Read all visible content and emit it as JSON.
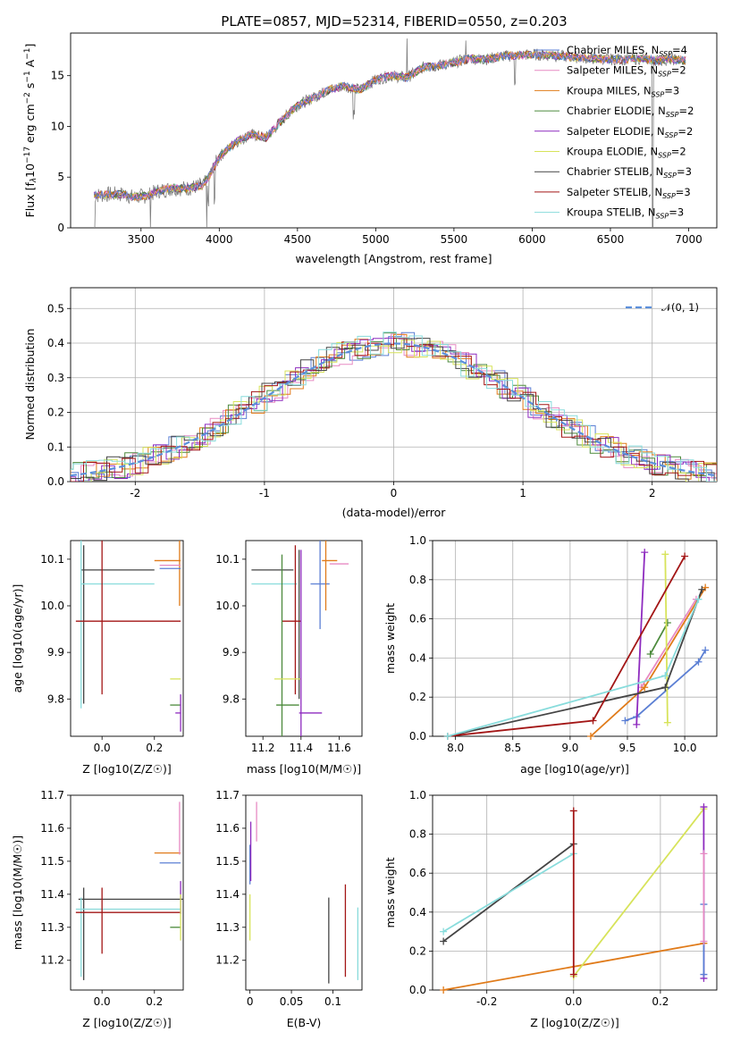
{
  "title": "PLATE=0857, MJD=52314, FIBERID=0550, z=0.203",
  "colors": {
    "chabrier_miles": "#5b7fd4",
    "salpeter_miles": "#e78ac3",
    "kroupa_miles": "#e07b1a",
    "chabrier_elodie": "#4c8a3c",
    "salpeter_elodie": "#8e2bbf",
    "kroupa_elodie": "#d7e35a",
    "chabrier_stelib": "#444444",
    "salpeter_stelib": "#a31616",
    "kroupa_stelib": "#88dcdc",
    "data": "#7f7f7f"
  },
  "chart_data": [
    {
      "id": "spectrum",
      "type": "line",
      "xlabel": "wavelength [Angstrom, rest frame]",
      "ylabel": "Flux [f_λ 10^-17 erg cm^-2 s^-1 A^-1]",
      "xlim": [
        3050,
        7180
      ],
      "ylim": [
        0,
        19.2
      ],
      "xticks": [
        3500,
        4000,
        4500,
        5000,
        5500,
        6000,
        6500,
        7000
      ],
      "yticks": [
        0,
        5,
        10,
        15
      ],
      "legend_position": "top-right",
      "legend": [
        "Chabrier MILES, N_SSP=4",
        "Salpeter MILES, N_SSP=2",
        "Kroupa MILES, N_SSP=3",
        "Chabrier ELODIE, N_SSP=2",
        "Salpeter ELODIE, N_SSP=2",
        "Kroupa ELODIE, N_SSP=2",
        "Chabrier STELIB, N_SSP=3",
        "Salpeter STELIB, N_SSP=3",
        "Kroupa STELIB, N_SSP=3"
      ],
      "continuum": [
        [
          3200,
          3.2
        ],
        [
          3300,
          3.3
        ],
        [
          3400,
          3.3
        ],
        [
          3450,
          3.0
        ],
        [
          3500,
          3.1
        ],
        [
          3550,
          3.2
        ],
        [
          3600,
          3.6
        ],
        [
          3700,
          3.9
        ],
        [
          3800,
          3.9
        ],
        [
          3900,
          4.2
        ],
        [
          3950,
          5.5
        ],
        [
          4000,
          7.0
        ],
        [
          4100,
          8.4
        ],
        [
          4200,
          9.2
        ],
        [
          4300,
          8.9
        ],
        [
          4400,
          10.6
        ],
        [
          4500,
          12.1
        ],
        [
          4600,
          12.8
        ],
        [
          4700,
          13.6
        ],
        [
          4800,
          14.0
        ],
        [
          4900,
          13.6
        ],
        [
          5000,
          14.6
        ],
        [
          5100,
          15.0
        ],
        [
          5200,
          14.8
        ],
        [
          5300,
          15.8
        ],
        [
          5400,
          16.0
        ],
        [
          5500,
          16.3
        ],
        [
          5600,
          16.7
        ],
        [
          5700,
          16.6
        ],
        [
          5800,
          16.9
        ],
        [
          5900,
          17.0
        ],
        [
          6000,
          17.1
        ],
        [
          6100,
          17.0
        ],
        [
          6200,
          16.9
        ],
        [
          6300,
          16.8
        ],
        [
          6400,
          16.7
        ],
        [
          6500,
          16.6
        ],
        [
          6600,
          16.6
        ],
        [
          6700,
          16.7
        ],
        [
          6800,
          16.5
        ],
        [
          6900,
          16.6
        ],
        [
          6980,
          16.5
        ]
      ]
    },
    {
      "id": "residuals",
      "type": "line",
      "xlabel": "(data-model)/error",
      "ylabel": "Normed distribution",
      "xlim": [
        -2.5,
        2.5
      ],
      "ylim": [
        0,
        0.56
      ],
      "xticks": [
        -2,
        -1,
        0,
        1,
        2
      ],
      "yticks": [
        0.0,
        0.1,
        0.2,
        0.3,
        0.4,
        0.5
      ],
      "legend_position": "top-right",
      "legend": [
        "𝒩(0, 1)"
      ],
      "series": [
        {
          "name": "𝒩(0, 1)",
          "mean": 0,
          "sigma": 1
        }
      ]
    },
    {
      "id": "age-vs-z",
      "type": "scatter",
      "xlabel": "Z [log10(Z/Z☉)]",
      "ylabel": "age [log10(age/yr)]",
      "xlim": [
        -0.12,
        0.31
      ],
      "ylim": [
        9.72,
        10.14
      ],
      "xticks": [
        0.0,
        0.2
      ],
      "yticks": [
        9.8,
        9.9,
        10.0,
        10.1
      ],
      "errorbars": [
        {
          "m": "chabrier_stelib",
          "x": 0.06,
          "xerr": 0.14,
          "y": 10.077,
          "yerr": 0.0
        },
        {
          "m": "chabrier_stelib",
          "x": -0.07,
          "xerr": 0.0,
          "y": 9.96,
          "yerr": 0.17
        },
        {
          "m": "kroupa_stelib",
          "x": 0.06,
          "xerr": 0.14,
          "y": 10.047,
          "yerr": 0.0
        },
        {
          "m": "kroupa_stelib",
          "x": -0.08,
          "xerr": 0.0,
          "y": 9.96,
          "yerr": 0.18
        },
        {
          "m": "salpeter_stelib",
          "x": 0.1,
          "xerr": 0.2,
          "y": 9.967,
          "yerr": 0.0
        },
        {
          "m": "salpeter_stelib",
          "x": 0.0,
          "xerr": 0.0,
          "y": 9.975,
          "yerr": 0.165
        },
        {
          "m": "kroupa_miles",
          "x": 0.25,
          "xerr": 0.05,
          "y": 10.097,
          "yerr": 0.0
        },
        {
          "m": "kroupa_miles",
          "x": 0.296,
          "xerr": 0.0,
          "y": 10.07,
          "yerr": 0.07
        },
        {
          "m": "chabrier_miles",
          "x": 0.26,
          "xerr": 0.04,
          "y": 10.08,
          "yerr": 0.0
        },
        {
          "m": "salpeter_miles",
          "x": 0.26,
          "xerr": 0.04,
          "y": 10.087,
          "yerr": 0.0
        },
        {
          "m": "kroupa_elodie",
          "x": 0.28,
          "xerr": 0.02,
          "y": 9.843,
          "yerr": 0.0
        },
        {
          "m": "chabrier_elodie",
          "x": 0.28,
          "xerr": 0.02,
          "y": 9.787,
          "yerr": 0.0
        },
        {
          "m": "salpeter_elodie",
          "x": 0.3,
          "xerr": 0.0,
          "y": 9.77,
          "yerr": 0.04
        },
        {
          "m": "salpeter_elodie",
          "x": 0.29,
          "xerr": 0.01,
          "y": 9.77,
          "yerr": 0.0
        }
      ]
    },
    {
      "id": "age-vs-mass",
      "type": "scatter",
      "xlabel": "mass [log10(M/M☉)]",
      "ylabel": "",
      "xlim": [
        11.11,
        11.72
      ],
      "ylim": [
        9.72,
        10.14
      ],
      "xticks": [
        11.2,
        11.4,
        11.6
      ],
      "yticks": [
        9.8,
        9.9,
        10.0,
        10.1
      ],
      "errorbars": [
        {
          "m": "chabrier_stelib",
          "x": 11.25,
          "xerr": 0.11,
          "y": 10.077,
          "yerr": 0.0
        },
        {
          "m": "chabrier_stelib",
          "x": 11.39,
          "xerr": 0.0,
          "y": 9.96,
          "yerr": 0.16
        },
        {
          "m": "kroupa_stelib",
          "x": 11.26,
          "xerr": 0.12,
          "y": 10.047,
          "yerr": 0.0
        },
        {
          "m": "salpeter_stelib",
          "x": 11.35,
          "xerr": 0.05,
          "y": 9.967,
          "yerr": 0.0
        },
        {
          "m": "salpeter_stelib",
          "x": 11.37,
          "xerr": 0.0,
          "y": 9.97,
          "yerr": 0.16
        },
        {
          "m": "chabrier_elodie",
          "x": 11.33,
          "xerr": 0.06,
          "y": 9.787,
          "yerr": 0.0
        },
        {
          "m": "chabrier_elodie",
          "x": 11.3,
          "xerr": 0.0,
          "y": 9.9,
          "yerr": 0.21
        },
        {
          "m": "kroupa_elodie",
          "x": 11.33,
          "xerr": 0.07,
          "y": 9.843,
          "yerr": 0.0
        },
        {
          "m": "salpeter_elodie",
          "x": 11.45,
          "xerr": 0.06,
          "y": 9.77,
          "yerr": 0.0
        },
        {
          "m": "salpeter_elodie",
          "x": 11.4,
          "xerr": 0.0,
          "y": 9.88,
          "yerr": 0.24
        },
        {
          "m": "chabrier_miles",
          "x": 11.5,
          "xerr": 0.05,
          "y": 10.047,
          "yerr": 0.0
        },
        {
          "m": "chabrier_miles",
          "x": 11.5,
          "xerr": 0.0,
          "y": 10.05,
          "yerr": 0.1
        },
        {
          "m": "kroupa_miles",
          "x": 11.55,
          "xerr": 0.04,
          "y": 10.097,
          "yerr": 0.0
        },
        {
          "m": "kroupa_miles",
          "x": 11.53,
          "xerr": 0.0,
          "y": 10.07,
          "yerr": 0.08
        },
        {
          "m": "salpeter_miles",
          "x": 11.6,
          "xerr": 0.05,
          "y": 10.09,
          "yerr": 0.0
        }
      ]
    },
    {
      "id": "weight-vs-age",
      "type": "line",
      "xlabel": "age [log10(age/yr)]",
      "ylabel": "mass weight",
      "xlim": [
        7.8,
        10.28
      ],
      "ylim": [
        0,
        1.0
      ],
      "xticks": [
        8.0,
        8.5,
        9.0,
        9.5,
        10.0
      ],
      "yticks": [
        0.0,
        0.2,
        0.4,
        0.6,
        0.8,
        1.0
      ],
      "grid": true,
      "series": [
        {
          "m": "chabrier_miles",
          "x": [
            9.48,
            9.58,
            10.12,
            10.18
          ],
          "y": [
            0.08,
            0.1,
            0.38,
            0.44
          ]
        },
        {
          "m": "salpeter_miles",
          "x": [
            9.62,
            10.1
          ],
          "y": [
            0.25,
            0.7
          ]
        },
        {
          "m": "kroupa_miles",
          "x": [
            9.18,
            9.65,
            10.18
          ],
          "y": [
            0.0,
            0.25,
            0.76
          ]
        },
        {
          "m": "chabrier_elodie",
          "x": [
            9.7,
            9.85
          ],
          "y": [
            0.42,
            0.58
          ]
        },
        {
          "m": "salpeter_elodie",
          "x": [
            9.58,
            9.65
          ],
          "y": [
            0.06,
            0.94
          ]
        },
        {
          "m": "kroupa_elodie",
          "x": [
            9.85,
            9.83
          ],
          "y": [
            0.07,
            0.93
          ]
        },
        {
          "m": "chabrier_stelib",
          "x": [
            7.93,
            9.83,
            10.15
          ],
          "y": [
            0.0,
            0.25,
            0.75
          ]
        },
        {
          "m": "salpeter_stelib",
          "x": [
            7.93,
            9.2,
            10.0
          ],
          "y": [
            0.0,
            0.08,
            0.92
          ]
        },
        {
          "m": "kroupa_stelib",
          "x": [
            7.93,
            9.83,
            10.12
          ],
          "y": [
            0.0,
            0.31,
            0.7
          ]
        }
      ]
    },
    {
      "id": "mass-vs-z",
      "type": "scatter",
      "xlabel": "Z [log10(Z/Z☉)]",
      "ylabel": "mass [log10(M/M☉)]",
      "xlim": [
        -0.12,
        0.31
      ],
      "ylim": [
        11.11,
        11.7
      ],
      "xticks": [
        0.0,
        0.2
      ],
      "yticks": [
        11.2,
        11.3,
        11.4,
        11.5,
        11.6,
        11.7
      ],
      "errorbars": [
        {
          "m": "chabrier_stelib",
          "x": 0.11,
          "xerr": 0.2,
          "y": 11.385,
          "yerr": 0.0
        },
        {
          "m": "chabrier_stelib",
          "x": -0.07,
          "xerr": 0.0,
          "y": 11.28,
          "yerr": 0.14
        },
        {
          "m": "kroupa_stelib",
          "x": 0.1,
          "xerr": 0.2,
          "y": 11.355,
          "yerr": 0.0
        },
        {
          "m": "kroupa_stelib",
          "x": -0.08,
          "xerr": 0.0,
          "y": 11.27,
          "yerr": 0.12
        },
        {
          "m": "salpeter_stelib",
          "x": 0.1,
          "xerr": 0.2,
          "y": 11.345,
          "yerr": 0.0
        },
        {
          "m": "salpeter_stelib",
          "x": 0.0,
          "xerr": 0.0,
          "y": 11.32,
          "yerr": 0.1
        },
        {
          "m": "kroupa_miles",
          "x": 0.25,
          "xerr": 0.05,
          "y": 11.525,
          "yerr": 0.0
        },
        {
          "m": "chabrier_miles",
          "x": 0.26,
          "xerr": 0.04,
          "y": 11.495,
          "yerr": 0.0
        },
        {
          "m": "salpeter_miles",
          "x": 0.296,
          "xerr": 0.0,
          "y": 11.6,
          "yerr": 0.08
        },
        {
          "m": "salpeter_elodie",
          "x": 0.3,
          "xerr": 0.0,
          "y": 11.39,
          "yerr": 0.05
        },
        {
          "m": "chabrier_elodie",
          "x": 0.28,
          "xerr": 0.02,
          "y": 11.3,
          "yerr": 0.0
        },
        {
          "m": "kroupa_elodie",
          "x": 0.3,
          "xerr": 0.0,
          "y": 11.33,
          "yerr": 0.07
        }
      ]
    },
    {
      "id": "mass-vs-ebv",
      "type": "scatter",
      "xlabel": "E(B-V)",
      "ylabel": "",
      "xlim": [
        -0.005,
        0.135
      ],
      "ylim": [
        11.11,
        11.7
      ],
      "xticks": [
        0.0,
        0.05,
        0.1
      ],
      "yticks": [
        11.2,
        11.3,
        11.4,
        11.5,
        11.6,
        11.7
      ],
      "errorbars": [
        {
          "m": "salpeter_miles",
          "x": 0.008,
          "xerr": 0.0,
          "y": 11.62,
          "yerr": 0.06
        },
        {
          "m": "chabrier_miles",
          "x": 0.0,
          "xerr": 0.0,
          "y": 11.49,
          "yerr": 0.06
        },
        {
          "m": "salpeter_elodie",
          "x": 0.001,
          "xerr": 0.0,
          "y": 11.53,
          "yerr": 0.09
        },
        {
          "m": "kroupa_elodie",
          "x": 0.0,
          "xerr": 0.0,
          "y": 11.33,
          "yerr": 0.07
        },
        {
          "m": "chabrier_stelib",
          "x": 0.095,
          "xerr": 0.0,
          "y": 11.26,
          "yerr": 0.13
        },
        {
          "m": "salpeter_stelib",
          "x": 0.115,
          "xerr": 0.0,
          "y": 11.29,
          "yerr": 0.14
        },
        {
          "m": "kroupa_stelib",
          "x": 0.13,
          "xerr": 0.0,
          "y": 11.25,
          "yerr": 0.11
        }
      ]
    },
    {
      "id": "weight-vs-z",
      "type": "line",
      "xlabel": "Z [log10(Z/Z☉)]",
      "ylabel": "mass weight",
      "xlim": [
        -0.325,
        0.33
      ],
      "ylim": [
        0,
        1.0
      ],
      "xticks": [
        -0.2,
        0.0,
        0.2
      ],
      "yticks": [
        0.0,
        0.2,
        0.4,
        0.6,
        0.8,
        1.0
      ],
      "grid": true,
      "series": [
        {
          "m": "chabrier_stelib",
          "x": [
            -0.3,
            0.0
          ],
          "y": [
            0.25,
            0.75
          ]
        },
        {
          "m": "kroupa_stelib",
          "x": [
            -0.3,
            0.0
          ],
          "y": [
            0.3,
            0.7
          ]
        },
        {
          "m": "kroupa_miles",
          "x": [
            -0.3,
            0.3
          ],
          "y": [
            0.0,
            0.24
          ]
        },
        {
          "m": "kroupa_elodie",
          "x": [
            0.0,
            0.3
          ],
          "y": [
            0.07,
            0.93
          ]
        },
        {
          "m": "salpeter_stelib",
          "x": [
            0.0,
            0.0
          ],
          "y": [
            0.08,
            0.92
          ]
        },
        {
          "m": "salpeter_elodie",
          "x": [
            0.3,
            0.3
          ],
          "y": [
            0.06,
            0.94
          ]
        },
        {
          "m": "chabrier_miles",
          "x": [
            0.3,
            0.3
          ],
          "y": [
            0.08,
            0.44
          ]
        },
        {
          "m": "salpeter_miles",
          "x": [
            0.3,
            0.3
          ],
          "y": [
            0.25,
            0.7
          ]
        }
      ]
    }
  ]
}
